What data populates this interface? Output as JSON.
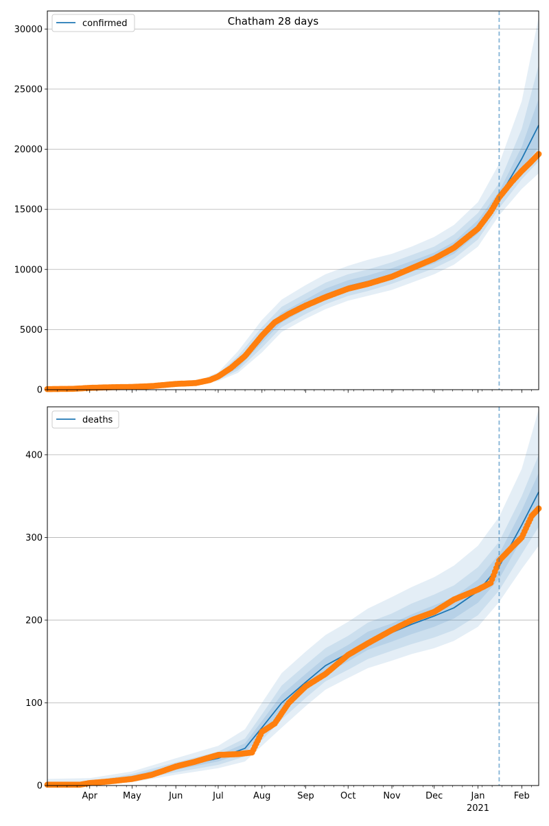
{
  "figure": {
    "title": "Chatham 28 days"
  },
  "chart_data": [
    {
      "type": "line",
      "legend": [
        "confirmed"
      ],
      "legend_position": "top-left",
      "ylim": [
        0,
        31500
      ],
      "yticks": [
        0,
        5000,
        10000,
        15000,
        20000,
        25000,
        30000
      ],
      "grid": "horizontal",
      "forecast_start": "2021-01-16",
      "series": [
        {
          "name": "confirmed",
          "style": "model line with shaded credible bands",
          "x": [
            "2020-03-02",
            "2020-04-01",
            "2020-05-01",
            "2020-06-01",
            "2020-06-20",
            "2020-07-01",
            "2020-07-15",
            "2020-08-01",
            "2020-08-15",
            "2020-09-01",
            "2020-09-15",
            "2020-10-01",
            "2020-10-15",
            "2020-11-01",
            "2020-11-15",
            "2020-12-01",
            "2020-12-15",
            "2021-01-01",
            "2021-01-16",
            "2021-02-01",
            "2021-02-13"
          ],
          "y": [
            50,
            100,
            220,
            450,
            650,
            1000,
            2100,
            4300,
            6000,
            7100,
            7900,
            8600,
            9000,
            9600,
            10200,
            10900,
            11800,
            13500,
            16000,
            19200,
            22000
          ],
          "bands": {
            "inner": {
              "lower": [
                40,
                90,
                200,
                420,
                600,
                900,
                1800,
                3900,
                5600,
                6700,
                7500,
                8200,
                8600,
                9200,
                9800,
                10500,
                11300,
                13000,
                15600,
                18300,
                20200
              ],
              "upper": [
                60,
                110,
                240,
                500,
                720,
                1150,
                2400,
                4700,
                6400,
                7500,
                8400,
                9100,
                9500,
                10100,
                10700,
                11400,
                12300,
                14100,
                16500,
                20200,
                24200
              ]
            },
            "middle": {
              "lower": [
                30,
                80,
                180,
                390,
                560,
                820,
                1600,
                3500,
                5200,
                6300,
                7100,
                7800,
                8200,
                8800,
                9400,
                10100,
                10900,
                12500,
                15100,
                17500,
                19000
              ],
              "upper": [
                70,
                130,
                270,
                550,
                800,
                1300,
                2800,
                5200,
                6900,
                8000,
                8900,
                9600,
                10000,
                10600,
                11200,
                11900,
                12900,
                14700,
                17200,
                21700,
                27000
              ]
            },
            "outer": {
              "lower": [
                10,
                60,
                150,
                340,
                500,
                720,
                1400,
                3100,
                4800,
                5900,
                6700,
                7400,
                7800,
                8300,
                8900,
                9600,
                10400,
                11900,
                14500,
                16700,
                18000
              ],
              "upper": [
                100,
                160,
                320,
                620,
                900,
                1450,
                3200,
                5800,
                7500,
                8700,
                9600,
                10300,
                10800,
                11300,
                11900,
                12700,
                13700,
                15600,
                18800,
                24000,
                31000
              ]
            }
          }
        },
        {
          "name": "observed confirmed",
          "style": "orange markers",
          "x": [
            "2020-03-02",
            "2020-03-20",
            "2020-04-01",
            "2020-04-15",
            "2020-05-01",
            "2020-05-15",
            "2020-06-01",
            "2020-06-15",
            "2020-06-25",
            "2020-07-01",
            "2020-07-10",
            "2020-07-20",
            "2020-08-01",
            "2020-08-10",
            "2020-08-20",
            "2020-09-01",
            "2020-09-15",
            "2020-10-01",
            "2020-10-15",
            "2020-11-01",
            "2020-11-15",
            "2020-12-01",
            "2020-12-15",
            "2021-01-01",
            "2021-01-10",
            "2021-01-16",
            "2021-01-25",
            "2021-02-01",
            "2021-02-08",
            "2021-02-13"
          ],
          "y": [
            50,
            70,
            150,
            200,
            230,
            300,
            480,
            550,
            800,
            1100,
            1800,
            2800,
            4500,
            5600,
            6300,
            7000,
            7700,
            8400,
            8800,
            9400,
            10100,
            10900,
            11800,
            13400,
            14800,
            16000,
            17300,
            18200,
            19000,
            19600
          ]
        }
      ]
    },
    {
      "type": "line",
      "legend": [
        "deaths"
      ],
      "legend_position": "top-left",
      "ylim": [
        0,
        458
      ],
      "yticks": [
        0,
        100,
        200,
        300,
        400
      ],
      "grid": "horizontal",
      "forecast_start": "2021-01-16",
      "xaxis": {
        "start": "2020-03-02",
        "end": "2021-02-13",
        "month_ticks": [
          "Apr",
          "May",
          "Jun",
          "Jul",
          "Aug",
          "Sep",
          "Oct",
          "Nov",
          "Dec",
          "Jan",
          "Feb"
        ],
        "year_label": "2021"
      },
      "series": [
        {
          "name": "deaths",
          "style": "model line with shaded credible bands",
          "x": [
            "2020-03-02",
            "2020-04-01",
            "2020-05-01",
            "2020-06-01",
            "2020-07-01",
            "2020-07-20",
            "2020-08-01",
            "2020-08-15",
            "2020-09-01",
            "2020-09-15",
            "2020-10-01",
            "2020-10-15",
            "2020-11-01",
            "2020-11-15",
            "2020-12-01",
            "2020-12-15",
            "2021-01-01",
            "2021-01-16",
            "2021-02-01",
            "2021-02-13"
          ],
          "y": [
            0,
            3,
            10,
            22,
            33,
            45,
            70,
            100,
            125,
            145,
            160,
            175,
            185,
            195,
            205,
            215,
            235,
            265,
            315,
            355
          ],
          "bands": {
            "inner": {
              "lower": [
                0,
                2,
                8,
                19,
                29,
                40,
                62,
                90,
                115,
                135,
                150,
                164,
                174,
                183,
                192,
                202,
                221,
                250,
                298,
                333
              ],
              "upper": [
                1,
                4,
                12,
                25,
                37,
                51,
                78,
                110,
                135,
                155,
                170,
                186,
                196,
                207,
                218,
                228,
                249,
                280,
                333,
                378
              ]
            },
            "middle": {
              "lower": [
                0,
                1,
                6,
                16,
                25,
                35,
                55,
                80,
                106,
                126,
                140,
                153,
                163,
                171,
                179,
                188,
                206,
                236,
                280,
                313
              ],
              "upper": [
                2,
                5,
                14,
                28,
                41,
                57,
                86,
                121,
                146,
                166,
                181,
                197,
                208,
                220,
                231,
                242,
                264,
                295,
                350,
                400
              ]
            },
            "outer": {
              "lower": [
                0,
                0,
                4,
                13,
                21,
                29,
                48,
                70,
                96,
                116,
                130,
                142,
                151,
                159,
                166,
                175,
                192,
                222,
                262,
                290
              ],
              "upper": [
                8,
                9,
                17,
                33,
                48,
                68,
                100,
                136,
                162,
                182,
                198,
                214,
                228,
                240,
                252,
                266,
                290,
                325,
                383,
                455
              ]
            }
          }
        },
        {
          "name": "observed deaths",
          "style": "orange markers",
          "x": [
            "2020-03-02",
            "2020-03-25",
            "2020-04-01",
            "2020-04-15",
            "2020-05-01",
            "2020-05-15",
            "2020-06-01",
            "2020-06-15",
            "2020-07-01",
            "2020-07-15",
            "2020-07-25",
            "2020-08-01",
            "2020-08-10",
            "2020-08-20",
            "2020-09-01",
            "2020-09-15",
            "2020-10-01",
            "2020-10-15",
            "2020-11-01",
            "2020-11-15",
            "2020-12-01",
            "2020-12-15",
            "2021-01-01",
            "2021-01-10",
            "2021-01-16",
            "2021-01-25",
            "2021-02-01",
            "2021-02-08",
            "2021-02-13"
          ],
          "y": [
            1,
            1,
            3,
            5,
            8,
            13,
            23,
            29,
            37,
            38,
            40,
            65,
            75,
            100,
            120,
            135,
            158,
            172,
            188,
            200,
            210,
            225,
            237,
            245,
            272,
            288,
            300,
            326,
            335
          ]
        }
      ]
    }
  ]
}
